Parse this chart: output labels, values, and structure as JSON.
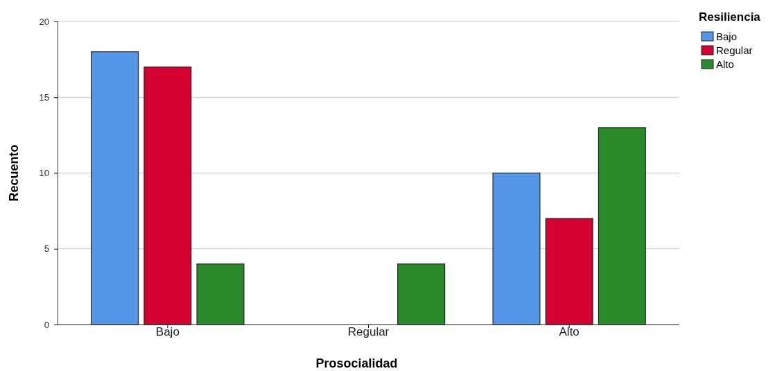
{
  "chart_data": {
    "type": "bar",
    "xlabel": "Prosocialidad",
    "ylabel": "Recuento",
    "legend_title": "Resiliencia",
    "categories": [
      "Bajo",
      "Regular",
      "Alto"
    ],
    "series": [
      {
        "name": "Bajo",
        "color": "#5596e6",
        "values": [
          18,
          0,
          10
        ]
      },
      {
        "name": "Regular",
        "color": "#d50032",
        "values": [
          17,
          0,
          7
        ]
      },
      {
        "name": "Alto",
        "color": "#2a8a2a",
        "values": [
          4,
          4,
          13
        ]
      }
    ],
    "ylim": [
      0,
      20
    ],
    "yticks": [
      0,
      5,
      10,
      15,
      20
    ],
    "grid": "y",
    "legend": "top right"
  }
}
